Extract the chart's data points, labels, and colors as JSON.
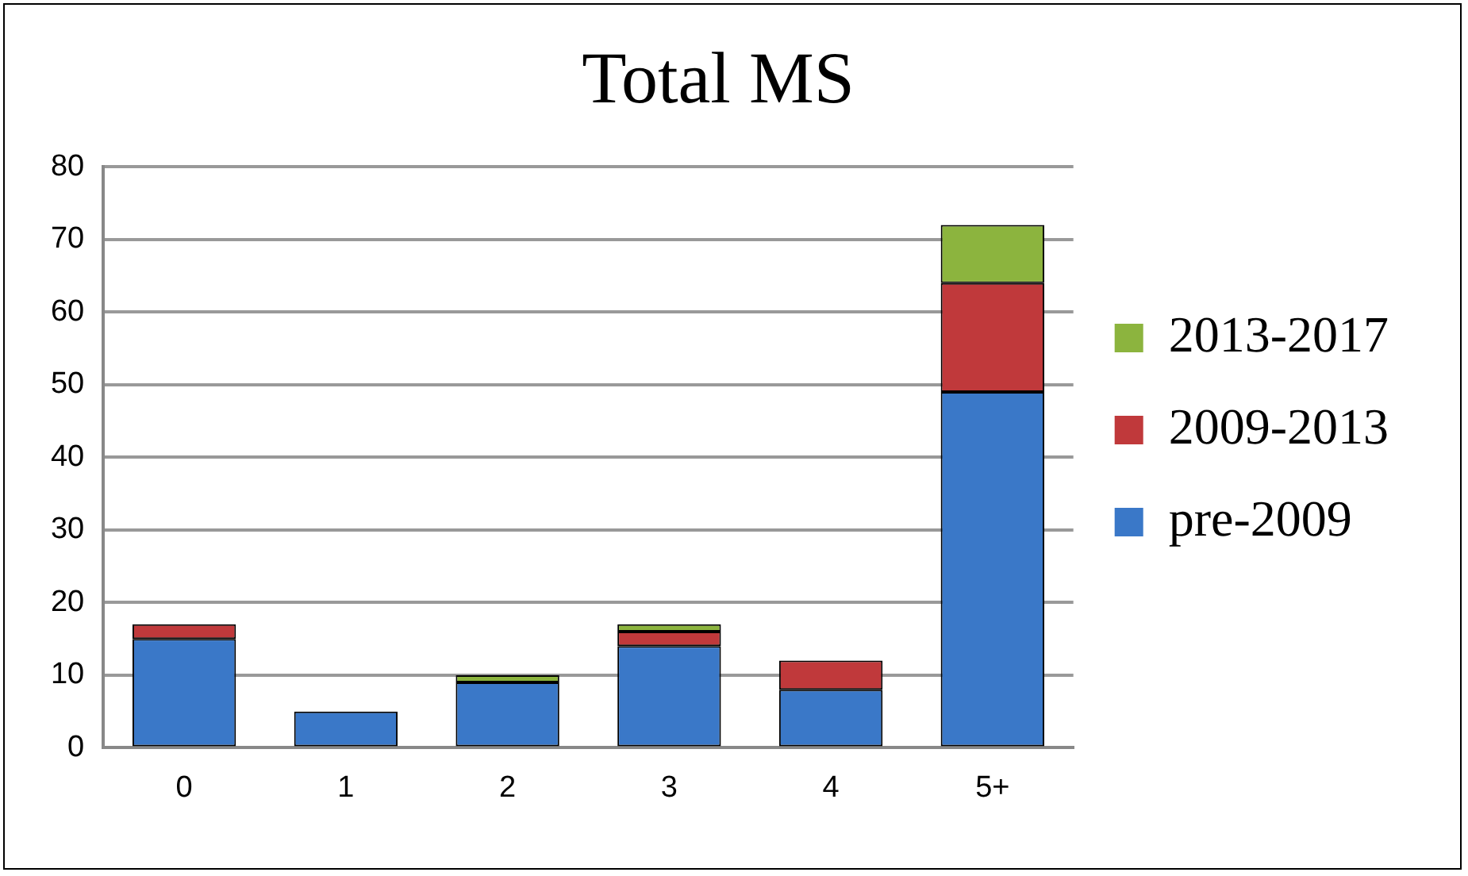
{
  "chart_data": {
    "type": "bar",
    "title": "Total MS",
    "categories": [
      "0",
      "1",
      "2",
      "3",
      "4",
      "5+"
    ],
    "stacked": true,
    "series": [
      {
        "name": "pre-2009",
        "color": "#3a78c8",
        "values": [
          15,
          5,
          9,
          14,
          8,
          49
        ]
      },
      {
        "name": "2009-2013",
        "color": "#c0393b",
        "values": [
          2,
          0,
          0,
          2,
          4,
          15
        ]
      },
      {
        "name": "2013-2017",
        "color": "#8cb43e",
        "values": [
          0,
          0,
          1,
          1,
          0,
          8
        ]
      }
    ],
    "ylim": [
      0,
      80
    ],
    "yticks": [
      0,
      10,
      20,
      30,
      40,
      50,
      60,
      70,
      80
    ],
    "grid": "y",
    "legend": "right"
  }
}
